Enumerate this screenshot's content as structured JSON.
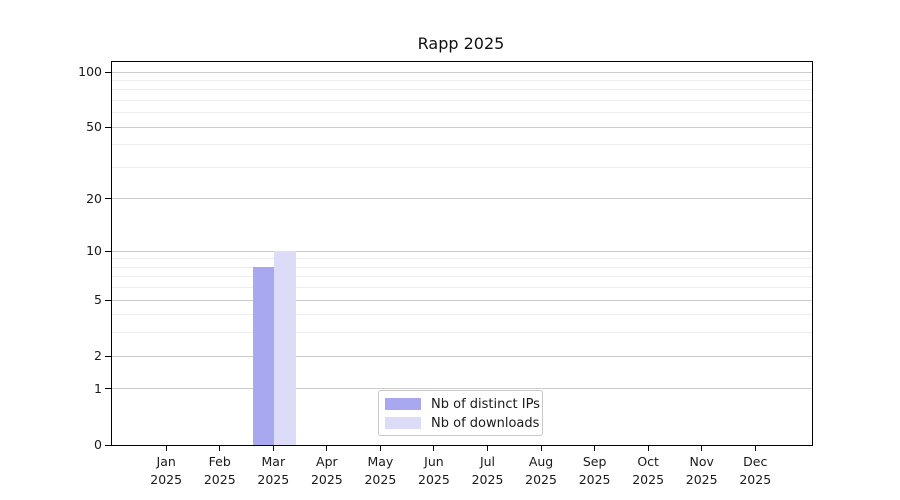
{
  "chart_data": {
    "type": "bar",
    "title": "Rapp 2025",
    "x_months": [
      "Jan",
      "Feb",
      "Mar",
      "Apr",
      "May",
      "Jun",
      "Jul",
      "Aug",
      "Sep",
      "Oct",
      "Nov",
      "Dec"
    ],
    "x_year": "2025",
    "series": [
      {
        "name": "Nb of distinct IPs",
        "color": "#a8a8f1",
        "values": [
          0,
          0,
          8,
          0,
          0,
          0,
          0,
          0,
          0,
          0,
          0,
          0
        ]
      },
      {
        "name": "Nb of downloads",
        "color": "#dcdcf9",
        "values": [
          0,
          0,
          10,
          0,
          0,
          0,
          0,
          0,
          0,
          0,
          0,
          0
        ]
      }
    ],
    "yscale": "log1p",
    "ylim": [
      0,
      113
    ],
    "yticks": [
      0,
      1,
      2,
      5,
      10,
      20,
      50,
      100
    ],
    "yticks_minor": [
      3,
      4,
      6,
      7,
      8,
      9,
      30,
      40,
      60,
      70,
      80,
      90
    ],
    "grid": true,
    "legend_position": "lower center",
    "colors": {
      "spine": "#000000",
      "text": "#1a1a1a",
      "major_grid": "#cccccc",
      "minor_grid": "#ededed",
      "legend_border": "#c8c8c8",
      "background": "#ffffff"
    }
  }
}
